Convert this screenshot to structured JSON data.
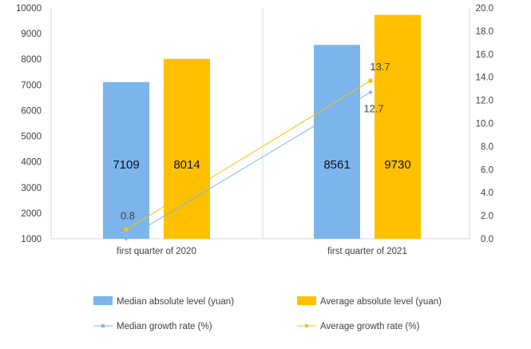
{
  "chart_data": {
    "type": "bar",
    "categories": [
      "first quarter of 2020",
      "first quarter of 2021"
    ],
    "series": [
      {
        "name": "Median absolute level (yuan)",
        "kind": "bar",
        "axis": "left",
        "color": "#7CB5EC",
        "values": [
          7109,
          8561
        ],
        "labels": [
          "7109",
          "8561"
        ]
      },
      {
        "name": "Average absolute level (yuan)",
        "kind": "bar",
        "axis": "left",
        "color": "#FFC000",
        "values": [
          8014,
          9730
        ],
        "labels": [
          "8014",
          "9730"
        ]
      },
      {
        "name": "Median growth rate (%)",
        "kind": "line",
        "axis": "right",
        "color": "#7CB5EC",
        "marker": "diamond",
        "values": [
          0.0,
          12.7
        ],
        "labels": [
          "",
          "12.7"
        ]
      },
      {
        "name": "Average growth rate (%)",
        "kind": "line",
        "axis": "right",
        "color": "#FFC000",
        "marker": "square",
        "values": [
          0.8,
          13.7
        ],
        "labels": [
          "0.8",
          "13.7"
        ]
      }
    ],
    "y_left": {
      "min": 1000,
      "max": 10000,
      "step": 1000,
      "ticks": [
        "1000",
        "2000",
        "3000",
        "4000",
        "5000",
        "6000",
        "7000",
        "8000",
        "9000",
        "10000"
      ]
    },
    "y_right": {
      "min": 0,
      "max": 20,
      "step": 2,
      "ticks": [
        "0.0",
        "2.0",
        "4.0",
        "6.0",
        "8.0",
        "10.0",
        "12.0",
        "14.0",
        "16.0",
        "18.0",
        "20.0"
      ]
    },
    "grid": "vertical gridlines",
    "legend": "bottom",
    "legend_entries": [
      "Median absolute level (yuan)",
      "Average absolute level (yuan)",
      "Median growth rate (%)",
      "Average growth rate (%)"
    ],
    "title": "",
    "xlabel": "",
    "ylabel": ""
  }
}
